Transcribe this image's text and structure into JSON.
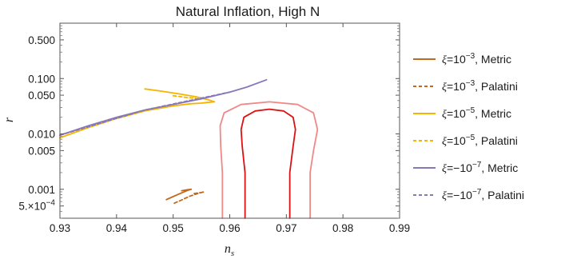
{
  "chart_data": {
    "type": "line",
    "title": "Natural Inflation, High N",
    "xlabel": "n",
    "xlabel_sub": "s",
    "ylabel": "r",
    "xlim": [
      0.93,
      0.99
    ],
    "ylim": [
      0.0003,
      1.0
    ],
    "yscale": "log",
    "grid": false,
    "legend_position": "right",
    "x_ticks": [
      0.93,
      0.94,
      0.95,
      0.96,
      0.97,
      0.98,
      0.99
    ],
    "x_tick_labels": [
      "0.93",
      "0.94",
      "0.95",
      "0.96",
      "0.97",
      "0.98",
      "0.99"
    ],
    "y_ticks": [
      0.0005,
      0.001,
      0.005,
      0.01,
      0.05,
      0.1,
      0.5
    ],
    "y_tick_labels": [
      "5.×10",
      "0.001",
      "0.005",
      "0.010",
      "0.050",
      "0.100",
      "0.500"
    ],
    "y_tick_superscripts": [
      "−4",
      "",
      "",
      "",
      "",
      "",
      ""
    ],
    "contours": [
      {
        "name": "inner contour",
        "color": "#dd1111",
        "points": [
          [
            0.9627,
            0.0003
          ],
          [
            0.9627,
            0.002
          ],
          [
            0.9622,
            0.006
          ],
          [
            0.962,
            0.012
          ],
          [
            0.9625,
            0.02
          ],
          [
            0.9645,
            0.026
          ],
          [
            0.967,
            0.028
          ],
          [
            0.9695,
            0.026
          ],
          [
            0.9712,
            0.02
          ],
          [
            0.9716,
            0.012
          ],
          [
            0.9712,
            0.006
          ],
          [
            0.9706,
            0.002
          ],
          [
            0.9706,
            0.0003
          ]
        ]
      },
      {
        "name": "outer contour",
        "color": "#f08888",
        "points": [
          [
            0.9587,
            0.0003
          ],
          [
            0.9587,
            0.002
          ],
          [
            0.9584,
            0.006
          ],
          [
            0.9583,
            0.014
          ],
          [
            0.959,
            0.024
          ],
          [
            0.962,
            0.034
          ],
          [
            0.967,
            0.038
          ],
          [
            0.972,
            0.034
          ],
          [
            0.9748,
            0.024
          ],
          [
            0.9755,
            0.012
          ],
          [
            0.9748,
            0.005
          ],
          [
            0.9742,
            0.002
          ],
          [
            0.9742,
            0.0003
          ]
        ]
      }
    ],
    "series": [
      {
        "name": "ξ=10^-3, Metric",
        "label_base": "ξ=10",
        "label_exp": "−3",
        "label_suffix": ", Metric",
        "color": "#c2691e",
        "dash": "solid",
        "points": [
          [
            0.9488,
            0.00065
          ],
          [
            0.9495,
            0.0007
          ],
          [
            0.951,
            0.00082
          ],
          [
            0.9525,
            0.00095
          ],
          [
            0.9532,
            0.001
          ],
          [
            0.9525,
            0.00098
          ],
          [
            0.9515,
            0.00094
          ]
        ]
      },
      {
        "name": "ξ=10^-3, Palatini",
        "label_base": "ξ=10",
        "label_exp": "−3",
        "label_suffix": ", Palatini",
        "color": "#c2691e",
        "dash": "dashed",
        "points": [
          [
            0.9502,
            0.00056
          ],
          [
            0.9515,
            0.00064
          ],
          [
            0.9528,
            0.00074
          ],
          [
            0.9545,
            0.00085
          ],
          [
            0.9555,
            0.0009
          ],
          [
            0.9548,
            0.00087
          ],
          [
            0.9535,
            0.00083
          ]
        ]
      },
      {
        "name": "ξ=10^-5, Metric",
        "label_base": "ξ=10",
        "label_exp": "−5",
        "label_suffix": ", Metric",
        "color": "#f5b400",
        "dash": "solid",
        "points": [
          [
            0.93,
            0.0085
          ],
          [
            0.935,
            0.013
          ],
          [
            0.94,
            0.019
          ],
          [
            0.945,
            0.026
          ],
          [
            0.95,
            0.032
          ],
          [
            0.953,
            0.035
          ],
          [
            0.955,
            0.036
          ],
          [
            0.956,
            0.037
          ],
          [
            0.9573,
            0.038
          ],
          [
            0.956,
            0.042
          ],
          [
            0.954,
            0.047
          ],
          [
            0.951,
            0.053
          ],
          [
            0.948,
            0.059
          ],
          [
            0.945,
            0.065
          ]
        ]
      },
      {
        "name": "ξ=10^-5, Palatini",
        "label_base": "ξ=10",
        "label_exp": "−5",
        "label_suffix": ", Palatini",
        "color": "#f5b400",
        "dash": "dashed",
        "points": [
          [
            0.95,
            0.049
          ],
          [
            0.952,
            0.046
          ],
          [
            0.954,
            0.044
          ]
        ]
      },
      {
        "name": "ξ=−10^-7, Metric",
        "label_base": "ξ=−10",
        "label_exp": "−7",
        "label_suffix": ", Metric",
        "color": "#8878b8",
        "dash": "solid",
        "points": [
          [
            0.93,
            0.0095
          ],
          [
            0.935,
            0.014
          ],
          [
            0.94,
            0.02
          ],
          [
            0.945,
            0.027
          ],
          [
            0.95,
            0.034
          ],
          [
            0.955,
            0.043
          ],
          [
            0.96,
            0.057
          ],
          [
            0.963,
            0.07
          ],
          [
            0.9665,
            0.095
          ]
        ]
      },
      {
        "name": "ξ=−10^-7, Palatini",
        "label_base": "ξ=−10",
        "label_exp": "−7",
        "label_suffix": ", Palatini",
        "color": "#8878b8",
        "dash": "dashed",
        "points": [
          [
            0.93,
            0.0095
          ],
          [
            0.945,
            0.027
          ],
          [
            0.96,
            0.057
          ]
        ]
      }
    ]
  }
}
